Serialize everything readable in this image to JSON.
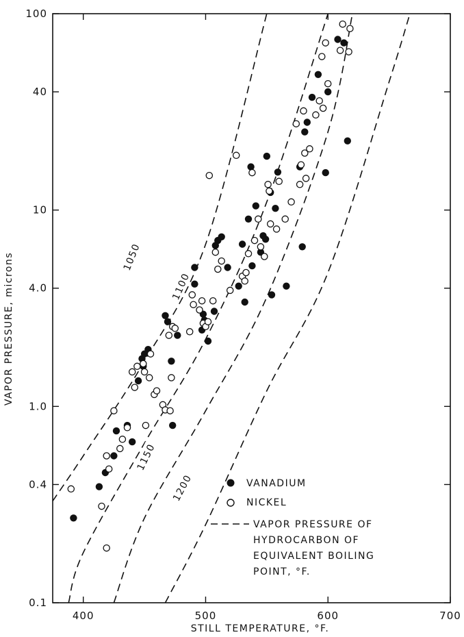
{
  "chart_data": {
    "type": "scatter",
    "title": "",
    "xlabel": "STILL TEMPERATURE, °F.",
    "ylabel": "VAPOR PRESSURE, microns",
    "xlim": [
      375,
      700
    ],
    "ylim": [
      0.1,
      100
    ],
    "y_scale": "log",
    "grid": false,
    "x_ticks": [
      "400",
      "500",
      "600",
      "700"
    ],
    "x_tick_values": [
      400,
      500,
      600,
      700
    ],
    "y_ticks": [
      "0.1",
      "0.4",
      "1.0",
      "4.0",
      "10",
      "40",
      "100"
    ],
    "y_tick_values": [
      0.1,
      0.4,
      1.0,
      4.0,
      10,
      40,
      100
    ],
    "legend_position": "bottom-right",
    "series": [
      {
        "name": "VANADIUM",
        "marker": "filled-circle",
        "x": [
          392,
          413,
          418,
          425,
          427,
          436,
          440,
          445,
          448,
          449,
          450,
          453,
          467,
          469,
          472,
          473,
          477,
          491,
          491,
          497,
          498,
          499,
          502,
          507,
          508,
          510,
          513,
          518,
          527,
          530,
          532,
          535,
          537,
          538,
          541,
          545,
          547,
          549,
          550,
          553,
          554,
          557,
          559,
          566,
          577,
          579,
          581,
          583,
          587,
          592,
          598,
          600,
          608,
          613,
          616
        ],
        "y": [
          0.27,
          0.39,
          0.46,
          0.56,
          0.75,
          0.8,
          0.66,
          1.35,
          1.75,
          1.6,
          1.85,
          1.95,
          2.9,
          2.7,
          1.7,
          0.8,
          2.3,
          5.1,
          4.2,
          2.45,
          2.95,
          2.75,
          2.15,
          3.05,
          6.6,
          7.0,
          7.3,
          5.1,
          4.1,
          6.7,
          3.4,
          9.0,
          16.6,
          5.2,
          10.5,
          6.1,
          7.4,
          7.1,
          18.8,
          12.3,
          3.7,
          10.2,
          15.6,
          4.1,
          16.6,
          6.5,
          25.0,
          28.0,
          37.5,
          49.0,
          15.5,
          40.0,
          74.0,
          71.0,
          22.5
        ]
      },
      {
        "name": "NICKEL",
        "marker": "open-circle",
        "x": [
          390,
          415,
          419,
          419,
          421,
          425,
          430,
          432,
          436,
          440,
          442,
          444,
          449,
          450,
          451,
          454,
          455,
          458,
          460,
          465,
          467,
          470,
          471,
          472,
          473,
          475,
          487,
          489,
          490,
          495,
          497,
          498,
          500,
          502,
          503,
          506,
          508,
          510,
          513,
          520,
          525,
          530,
          532,
          533,
          535,
          538,
          540,
          543,
          545,
          548,
          551,
          552,
          553,
          558,
          560,
          565,
          570,
          574,
          577,
          578,
          580,
          581,
          582,
          585,
          590,
          593,
          595,
          596,
          598,
          600,
          610,
          612,
          617,
          618
        ],
        "y": [
          0.38,
          0.31,
          0.19,
          0.56,
          0.48,
          0.95,
          0.61,
          0.68,
          0.78,
          1.5,
          1.25,
          1.6,
          1.65,
          1.5,
          0.8,
          1.4,
          1.85,
          1.15,
          1.2,
          1.02,
          0.96,
          2.3,
          0.95,
          1.4,
          2.55,
          2.5,
          2.4,
          3.7,
          3.3,
          3.1,
          3.45,
          2.65,
          2.55,
          2.7,
          15.0,
          3.45,
          6.1,
          5.0,
          5.5,
          3.9,
          19.0,
          4.6,
          4.35,
          4.8,
          6.0,
          15.5,
          7.0,
          9.0,
          6.5,
          5.8,
          13.5,
          12.5,
          8.5,
          8.0,
          14.0,
          9.0,
          11.0,
          27.5,
          13.5,
          17.0,
          32.0,
          19.5,
          14.5,
          20.5,
          30.5,
          36.0,
          60.5,
          33.0,
          71.0,
          44.0,
          65.0,
          88.5,
          64.0,
          84.0
        ]
      }
    ],
    "reference_curves": [
      {
        "label": "1050",
        "style": "dashed",
        "x": [
          375,
          400,
          450,
          500,
          550
        ],
        "y": [
          0.33,
          0.56,
          1.7,
          6.7,
          100
        ]
      },
      {
        "label": "1100",
        "style": "dashed",
        "x": [
          388,
          400,
          450,
          500,
          550,
          600
        ],
        "y": [
          0.1,
          0.18,
          0.65,
          2.2,
          11.0,
          100
        ]
      },
      {
        "label": "1150",
        "style": "dashed",
        "x": [
          425,
          450,
          500,
          550,
          600,
          620
        ],
        "y": [
          0.1,
          0.27,
          0.95,
          3.6,
          25.0,
          100
        ]
      },
      {
        "label": "1200",
        "style": "dashed",
        "x": [
          467,
          500,
          550,
          600,
          650,
          667
        ],
        "y": [
          0.1,
          0.25,
          1.2,
          4.8,
          45.0,
          100
        ]
      }
    ],
    "legend": {
      "vanadium_label": "VANADIUM",
      "nickel_label": "NICKEL",
      "curve_line1": "VAPOR PRESSURE OF",
      "curve_line2": "HYDROCARBON OF",
      "curve_line3": "EQUIVALENT BOILING",
      "curve_line4": "POINT, °F."
    }
  }
}
